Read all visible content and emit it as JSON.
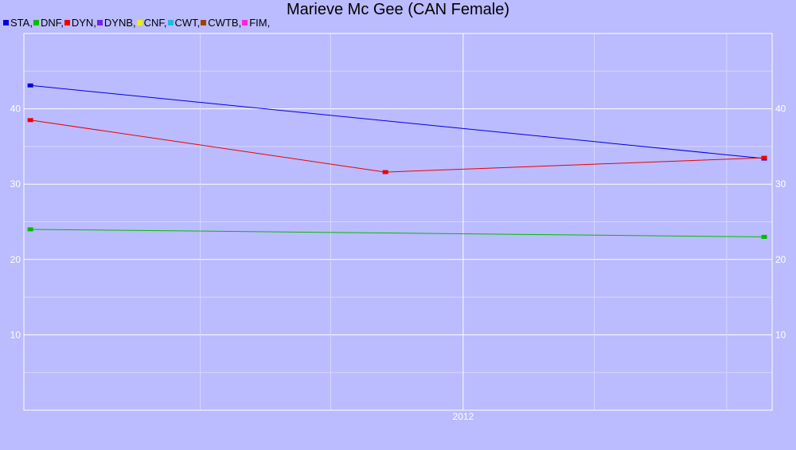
{
  "title": "Marieve Mc Gee (CAN Female)",
  "legend": [
    {
      "label": "STA,",
      "color": "#0000dd"
    },
    {
      "label": "DNF,",
      "color": "#00bb00"
    },
    {
      "label": "DYN,",
      "color": "#ee0000"
    },
    {
      "label": "DYNB,",
      "color": "#7722ee"
    },
    {
      "label": "CNF,",
      "color": "#eeee00"
    },
    {
      "label": "CWT,",
      "color": "#22bbdd"
    },
    {
      "label": "CWTB,",
      "color": "#994400"
    },
    {
      "label": "FIM,",
      "color": "#ff22dd"
    }
  ],
  "colors": {
    "background": "#bbbbff",
    "grid_major": "#ffffff",
    "grid_minor": "#d6d6ff",
    "tick_text": "#ffffff"
  },
  "chart_data": {
    "type": "line",
    "title": "Marieve Mc Gee (CAN Female)",
    "xlabel": "",
    "ylabel": "",
    "x_ticks": [
      "2012"
    ],
    "y_ticks": [
      10,
      20,
      30,
      40
    ],
    "ylim": [
      0,
      50
    ],
    "xlim": [
      "2010-05-01",
      "2013-03-05"
    ],
    "grid": true,
    "legend_position": "top-left",
    "series": [
      {
        "name": "STA",
        "color": "#0000dd",
        "points": [
          {
            "x": "2010-05-10",
            "y": 43.1
          },
          {
            "x": "2013-02-22",
            "y": 33.4
          }
        ]
      },
      {
        "name": "DNF",
        "color": "#00bb00",
        "points": [
          {
            "x": "2010-05-10",
            "y": 24.0
          },
          {
            "x": "2013-02-22",
            "y": 23.0
          }
        ]
      },
      {
        "name": "DYN",
        "color": "#ee0000",
        "points": [
          {
            "x": "2010-05-10",
            "y": 38.5
          },
          {
            "x": "2011-09-15",
            "y": 31.6
          },
          {
            "x": "2013-02-22",
            "y": 33.5
          }
        ]
      }
    ]
  }
}
